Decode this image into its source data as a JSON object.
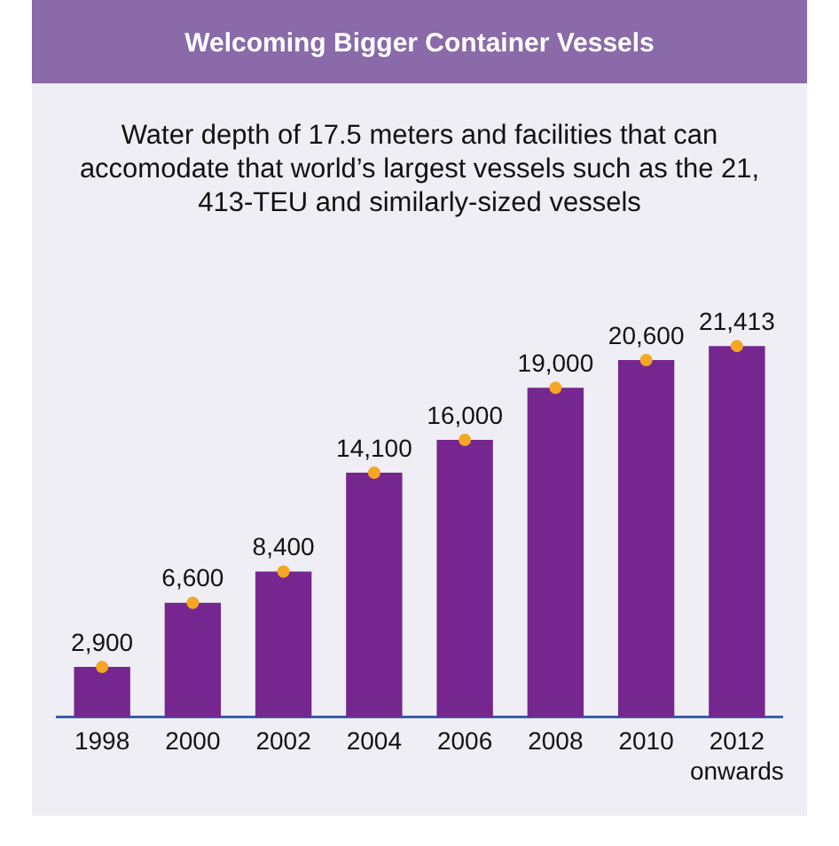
{
  "chart_data": {
    "type": "bar",
    "title": "Welcoming Bigger Container Vessels",
    "subtitle": "Water depth of 17.5 meters and facilities that can accomodate that world’s largest vessels such as the 21, 413-TEU and similarly-sized vessels",
    "categories": [
      "1998",
      "2000",
      "2002",
      "2004",
      "2006",
      "2008",
      "2010",
      "2012 onwards"
    ],
    "series": [
      {
        "color": "#75278f",
        "values": [
          2900,
          6600,
          8400,
          14100,
          16000,
          19000,
          20600,
          21413
        ],
        "value_labels": [
          "2,900",
          "6,600",
          "8,400",
          "14,100",
          "16,000",
          "19,000",
          "20,600",
          "21,413"
        ]
      },
      {
        "type": "scatter",
        "color": "#f5a623",
        "values": [
          2900,
          6600,
          8400,
          14100,
          16000,
          19000,
          20600,
          21413
        ]
      }
    ],
    "marker": "circle",
    "grid": false,
    "legend": false,
    "tick_labels": "x"
  }
}
